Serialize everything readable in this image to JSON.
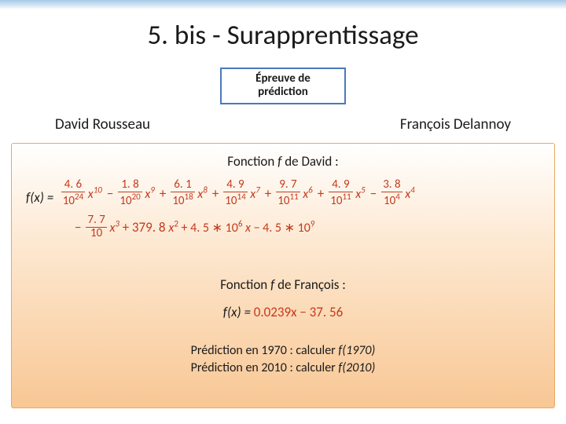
{
  "colors": {
    "topbar_from": "#a8c8e8",
    "topbar_to": "#ffffff",
    "badge_border": "#4a7ab8",
    "box_border": "#e8a862",
    "box_grad_top": "#ffffff",
    "box_grad_mid": "#fde7cf",
    "box_grad_bot": "#f8c794",
    "formula_red": "#c43a1e",
    "text": "#1a1a1a"
  },
  "title": "5. bis - Surapprentissage",
  "badge": {
    "line1": "Épreuve de",
    "line2": "prédiction"
  },
  "names": {
    "left": "David Rousseau",
    "right": "François Delannoy"
  },
  "david": {
    "title_prefix": "Fonction ",
    "title_var": "f",
    "title_suffix": " de David :",
    "lhs": "f(x) =",
    "terms": [
      {
        "sign": "+",
        "num": "4. 6",
        "den_base": "10",
        "den_exp": "24",
        "x_exp": "10"
      },
      {
        "sign": "−",
        "num": "1. 8",
        "den_base": "10",
        "den_exp": "20",
        "x_exp": "9"
      },
      {
        "sign": "+",
        "num": "6. 1",
        "den_base": "10",
        "den_exp": "18",
        "x_exp": "8"
      },
      {
        "sign": "+",
        "num": "4. 9",
        "den_base": "10",
        "den_exp": "14",
        "x_exp": "7"
      },
      {
        "sign": "+",
        "num": "9. 7",
        "den_base": "10",
        "den_exp": "11",
        "x_exp": "6"
      },
      {
        "sign": "+",
        "num": "4. 9",
        "den_base": "10",
        "den_exp": "11",
        "x_exp": "5"
      },
      {
        "sign": "−",
        "num": "3. 8",
        "den_base": "10",
        "den_exp": "4",
        "x_exp": "4"
      }
    ],
    "line2_terms": [
      {
        "sign": "−",
        "num": "7. 7",
        "den_base": "10",
        "den_exp": "",
        "x_exp": "3"
      }
    ],
    "tail": "+ 379. 8 x² + 4. 5 ∗ 10⁶ x − 4. 5 ∗ 10⁹",
    "tail_plain_1": "+ 379. 8 ",
    "tail_x2": "x",
    "tail_x2_exp": "2",
    "tail_plain_2": " + 4. 5 ∗ 10",
    "tail_exp_2": "6",
    "tail_space_x": " x",
    "tail_plain_3": " − 4. 5 ∗ 10",
    "tail_exp_3": "9"
  },
  "francois": {
    "title_prefix": "Fonction ",
    "title_var": "f",
    "title_suffix": " de François :",
    "lhs_f": "f",
    "lhs_x": "(x) = ",
    "rhs": "0.0239x − 37. 56"
  },
  "predictions": {
    "p1_prefix": "Prédiction en 1970 : calculer ",
    "p1_fx": "f(1970)",
    "p2_prefix": "Prédiction en 2010 : calculer ",
    "p2_fx": "f(2010)"
  }
}
